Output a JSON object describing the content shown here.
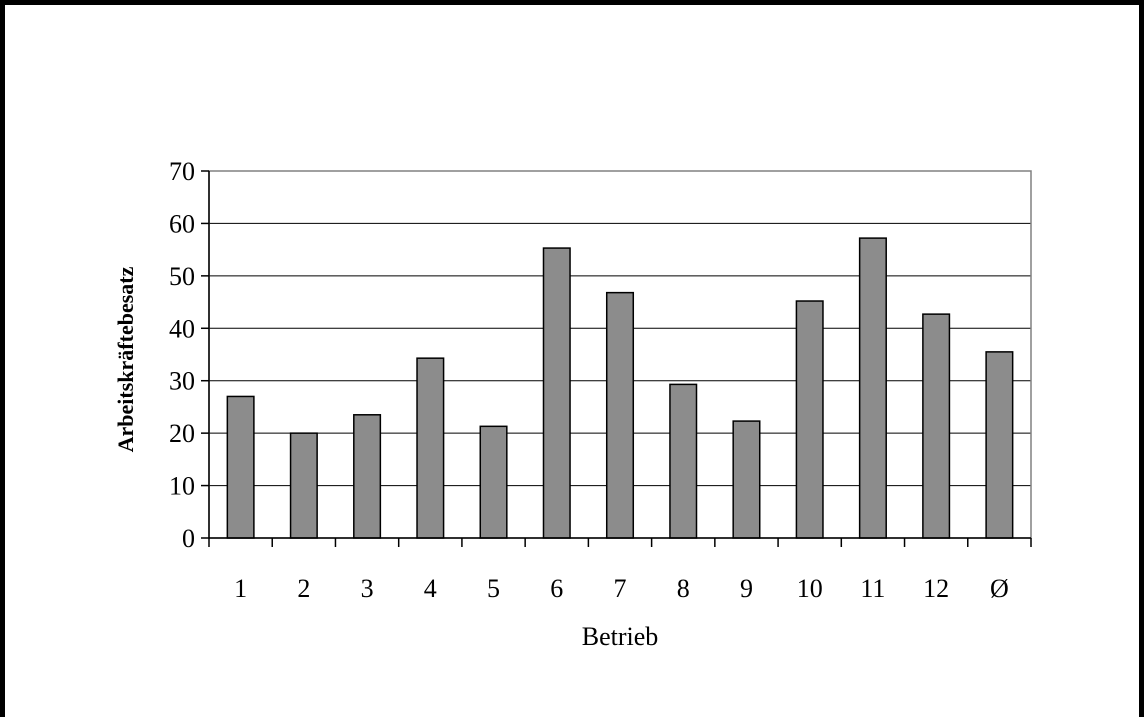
{
  "chart_data": {
    "type": "bar",
    "title": "",
    "xlabel": "Betrieb",
    "ylabel": "Arbeitskräftebesatz",
    "categories": [
      "1",
      "2",
      "3",
      "4",
      "5",
      "6",
      "7",
      "8",
      "9",
      "10",
      "11",
      "12",
      "Ø"
    ],
    "values": [
      27,
      20,
      23.5,
      34.3,
      21.3,
      55.3,
      46.8,
      29.3,
      22.3,
      45.2,
      57.2,
      42.7,
      35.5
    ],
    "ylim": [
      0,
      70
    ],
    "yticks": [
      0,
      10,
      20,
      30,
      40,
      50,
      60,
      70
    ],
    "grid": true,
    "legend": "none",
    "colors": {
      "bar_fill": "#8c8c8c",
      "bar_stroke": "#000000",
      "gridline": "#000000",
      "plot_border": "#808080"
    }
  }
}
